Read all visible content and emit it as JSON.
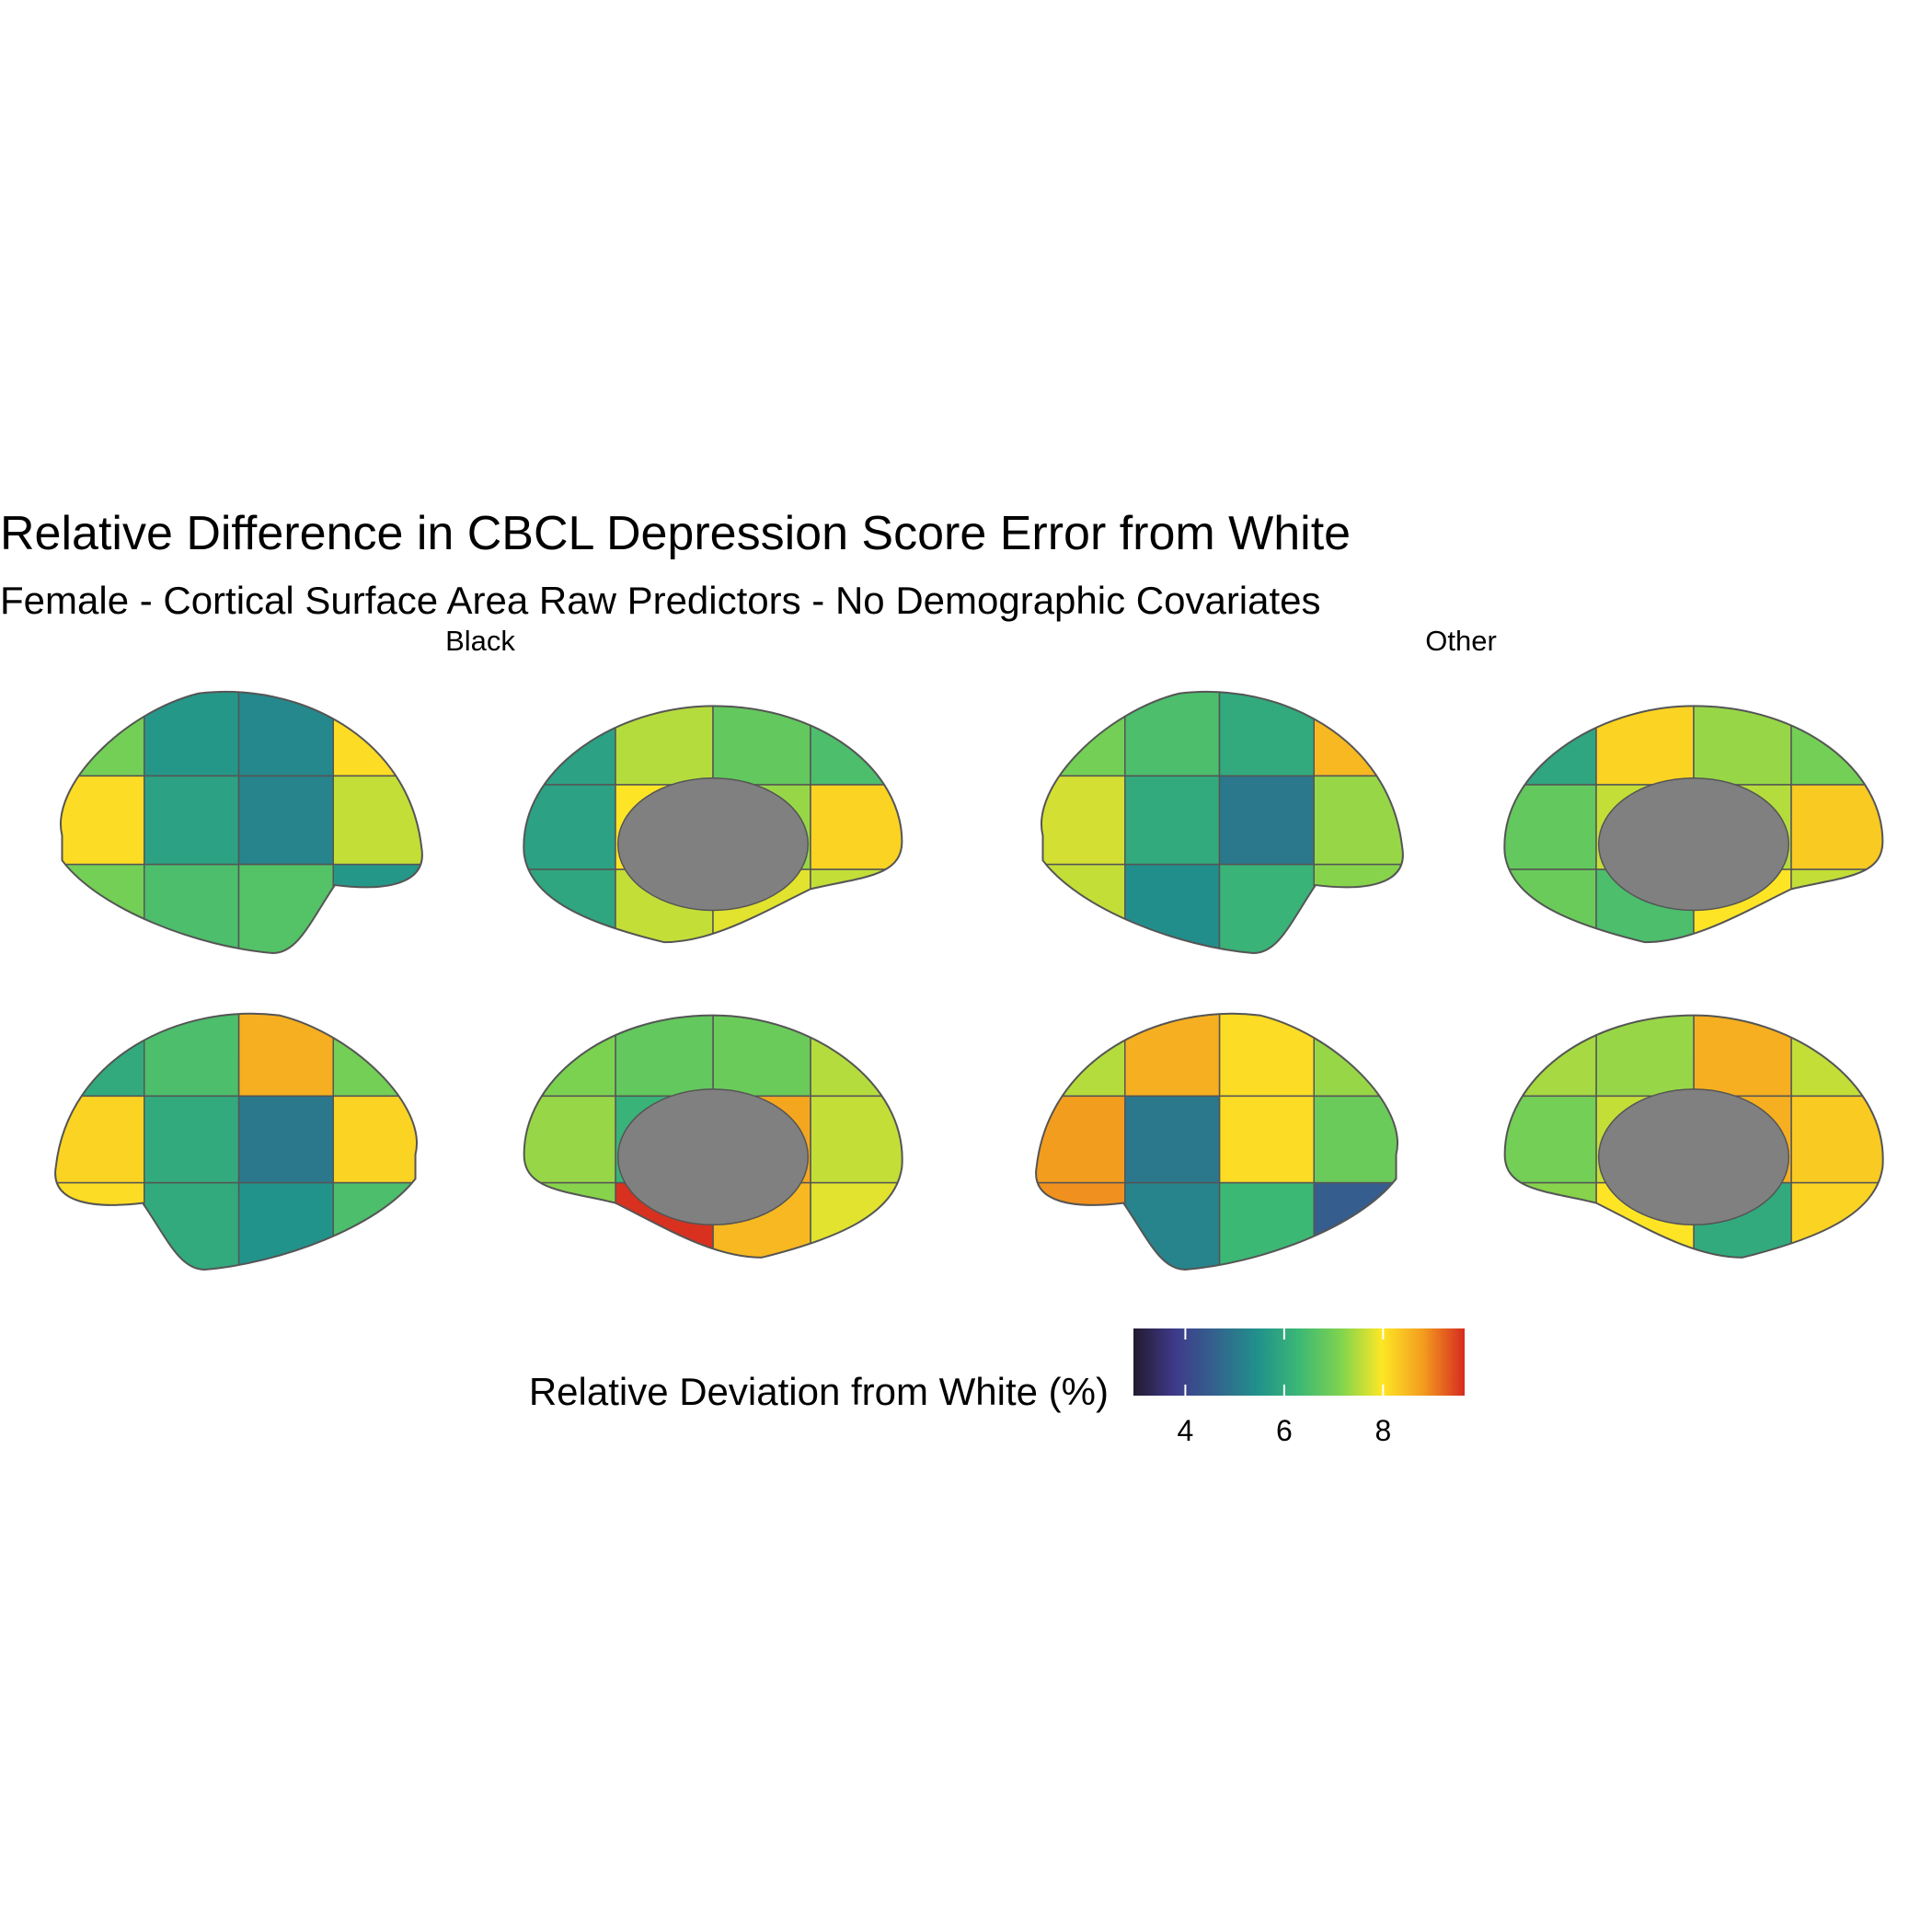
{
  "chart_data": {
    "type": "brain-map",
    "title": "Relative Difference in CBCL Depression Score Error from White",
    "subtitle": "Female - Cortical Surface Area Raw Predictors - No Demographic Covariates",
    "facets": [
      {
        "name": "Black",
        "views": [
          {
            "values": [
              7.0,
              5.6,
              5.3,
              8.1,
              8.1,
              5.8,
              5.2,
              7.6,
              7.0,
              6.5,
              6.6,
              5.6
            ]
          },
          {
            "values": [
              5.8,
              7.5,
              6.8,
              6.5,
              5.8,
              8.0,
              7.3,
              8.2,
              5.9,
              7.6,
              7.8,
              7.6
            ]
          },
          {
            "values": [
              7.0,
              8.6,
              6.5,
              6.0,
              8.2,
              5.0,
              6.0,
              8.2,
              6.5,
              5.5,
              6.0,
              8.1
            ]
          },
          {
            "values": [
              7.5,
              6.9,
              6.8,
              7.1,
              7.6,
              8.7,
              6.2,
              7.3,
              7.8,
              8.5,
              9.6,
              7.2
            ]
          }
        ]
      },
      {
        "name": "Other",
        "views": [
          {
            "values": [
              7.0,
              6.5,
              6.0,
              8.5,
              7.7,
              6.0,
              5.0,
              7.3,
              7.6,
              5.4,
              6.2,
              7.2
            ]
          },
          {
            "values": [
              5.9,
              8.2,
              7.3,
              7.0,
              6.8,
              7.6,
              7.5,
              8.3,
              6.9,
              6.5,
              8.0,
              7.6
            ]
          },
          {
            "values": [
              7.3,
              8.1,
              8.6,
              7.5,
              6.9,
              8.1,
              5.0,
              8.8,
              4.5,
              6.3,
              5.2,
              8.9
            ]
          },
          {
            "values": [
              7.6,
              8.6,
              7.3,
              7.4,
              8.3,
              8.6,
              7.6,
              7.0,
              8.2,
              6.0,
              8.0,
              7.2
            ]
          }
        ]
      }
    ],
    "legend_title": "Relative Deviation from White (%)",
    "colorbar": {
      "lim": [
        2.95,
        9.65
      ],
      "ticks": [
        4,
        6,
        8
      ],
      "colors": [
        "#231a2f",
        "#3f3a8a",
        "#33638d",
        "#21918c",
        "#3cb875",
        "#7ed34f",
        "#fde725",
        "#f39c1e",
        "#d62a20"
      ]
    }
  }
}
